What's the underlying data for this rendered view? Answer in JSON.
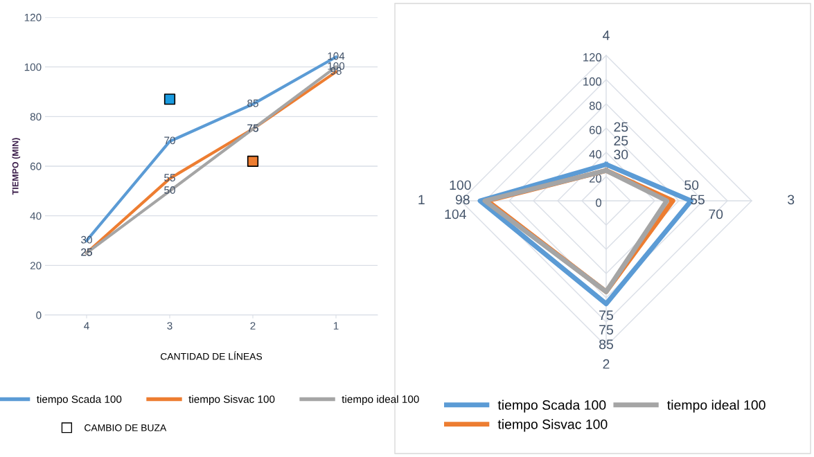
{
  "chart_data": [
    {
      "type": "line",
      "xlabel": "CANTIDAD DE LÍNEAS",
      "ylabel": "TIEMPO (MIN)",
      "categories": [
        "4",
        "3",
        "2",
        "1"
      ],
      "ylim": [
        0,
        120
      ],
      "yticks": [
        0,
        20,
        40,
        60,
        80,
        100,
        120
      ],
      "grid": "y",
      "legend": "bottom",
      "series": [
        {
          "name": "tiempo Scada 100",
          "color": "#5b9bd5",
          "values": [
            30,
            70,
            85,
            104
          ],
          "value_labels": [
            "30",
            "70",
            "85",
            "104"
          ]
        },
        {
          "name": "tiempo Sisvac 100",
          "color": "#ed7d31",
          "values": [
            25,
            55,
            75,
            98
          ],
          "value_labels": [
            "25",
            "55",
            "75",
            "98"
          ]
        },
        {
          "name": "tiempo ideal 100",
          "color": "#a5a5a5",
          "values": [
            25,
            50,
            75,
            100
          ],
          "value_labels": [
            "25",
            "50",
            "75",
            "100"
          ]
        },
        {
          "name": "CAMBIO DE BUZA",
          "type": "scatter",
          "marker": "square",
          "x": [
            "3",
            "2"
          ],
          "values": [
            87,
            62
          ],
          "colors": [
            "#1a9be0",
            "#ed7d31"
          ]
        }
      ]
    },
    {
      "type": "radar",
      "categories": [
        "4",
        "3",
        "2",
        "1"
      ],
      "ylim": [
        0,
        120
      ],
      "yticks": [
        0,
        20,
        40,
        60,
        80,
        100,
        120
      ],
      "grid": true,
      "legend": "bottom",
      "data_labels": true,
      "series": [
        {
          "name": "tiempo Scada 100",
          "color": "#5b9bd5",
          "values": [
            30,
            70,
            85,
            104
          ]
        },
        {
          "name": "tiempo Sisvac 100",
          "color": "#ed7d31",
          "values": [
            25,
            55,
            75,
            98
          ]
        },
        {
          "name": "tiempo ideal 100",
          "color": "#a5a5a5",
          "values": [
            25,
            50,
            75,
            100
          ]
        }
      ]
    }
  ]
}
